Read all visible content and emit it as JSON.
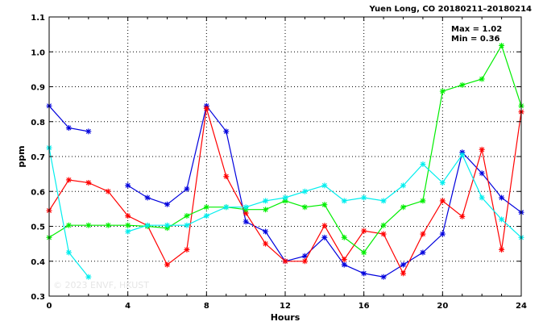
{
  "chart_data": {
    "type": "line",
    "title": "Yuen Long, CO 20180211–20180214",
    "xlabel": "Hours",
    "ylabel": "ppm",
    "xlim": [
      0,
      24
    ],
    "ylim": [
      0.3,
      1.1
    ],
    "x_ticks": [
      0,
      4,
      8,
      12,
      16,
      20,
      24
    ],
    "y_ticks": [
      0.3,
      0.4,
      0.5,
      0.6,
      0.7,
      0.8,
      0.9,
      1.0,
      1.1
    ],
    "x_tick_labels": [
      "0",
      "4",
      "8",
      "12",
      "16",
      "20",
      "24"
    ],
    "y_tick_labels": [
      "0.3",
      "0.4",
      "0.5",
      "0.6",
      "0.7",
      "0.8",
      "0.9",
      "1.0",
      "1.1"
    ],
    "grid": true,
    "stats": {
      "max": "Max = 1.02",
      "min": "Min = 0.36"
    },
    "watermark": "© 2023 ENVF, HKUST",
    "x": [
      0,
      1,
      2,
      3,
      4,
      5,
      6,
      7,
      8,
      9,
      10,
      11,
      12,
      13,
      14,
      15,
      16,
      17,
      18,
      19,
      20,
      21,
      22,
      23,
      24
    ],
    "series": [
      {
        "color": "#0000dd",
        "values": [
          0.845,
          0.782,
          0.772,
          null,
          0.617,
          0.582,
          0.563,
          0.607,
          0.845,
          0.772,
          0.513,
          0.485,
          0.4,
          0.415,
          0.468,
          0.39,
          0.365,
          0.355,
          0.39,
          0.425,
          0.478,
          0.712,
          0.652,
          0.582,
          0.54
        ]
      },
      {
        "color": "#ff0000",
        "values": [
          0.545,
          0.633,
          0.625,
          0.6,
          0.53,
          0.502,
          0.39,
          0.433,
          0.838,
          0.643,
          0.538,
          0.45,
          0.4,
          0.4,
          0.502,
          0.405,
          0.487,
          0.478,
          0.365,
          0.478,
          0.573,
          0.528,
          0.72,
          0.433,
          0.828
        ]
      },
      {
        "color": "#00ee00",
        "values": [
          0.468,
          0.503,
          0.503,
          0.503,
          0.503,
          0.5,
          0.495,
          0.53,
          0.555,
          0.555,
          0.548,
          0.548,
          0.573,
          0.555,
          0.562,
          0.468,
          0.425,
          0.503,
          0.555,
          0.573,
          0.887,
          0.905,
          0.922,
          1.018,
          0.845
        ]
      },
      {
        "color": "#00eeee",
        "values": [
          0.725,
          0.425,
          0.355,
          null,
          0.485,
          0.503,
          0.503,
          0.503,
          0.53,
          0.555,
          0.555,
          0.573,
          0.582,
          0.6,
          0.617,
          0.573,
          0.582,
          0.573,
          0.617,
          0.678,
          0.625,
          0.705,
          0.582,
          0.52,
          0.468
        ]
      }
    ]
  }
}
